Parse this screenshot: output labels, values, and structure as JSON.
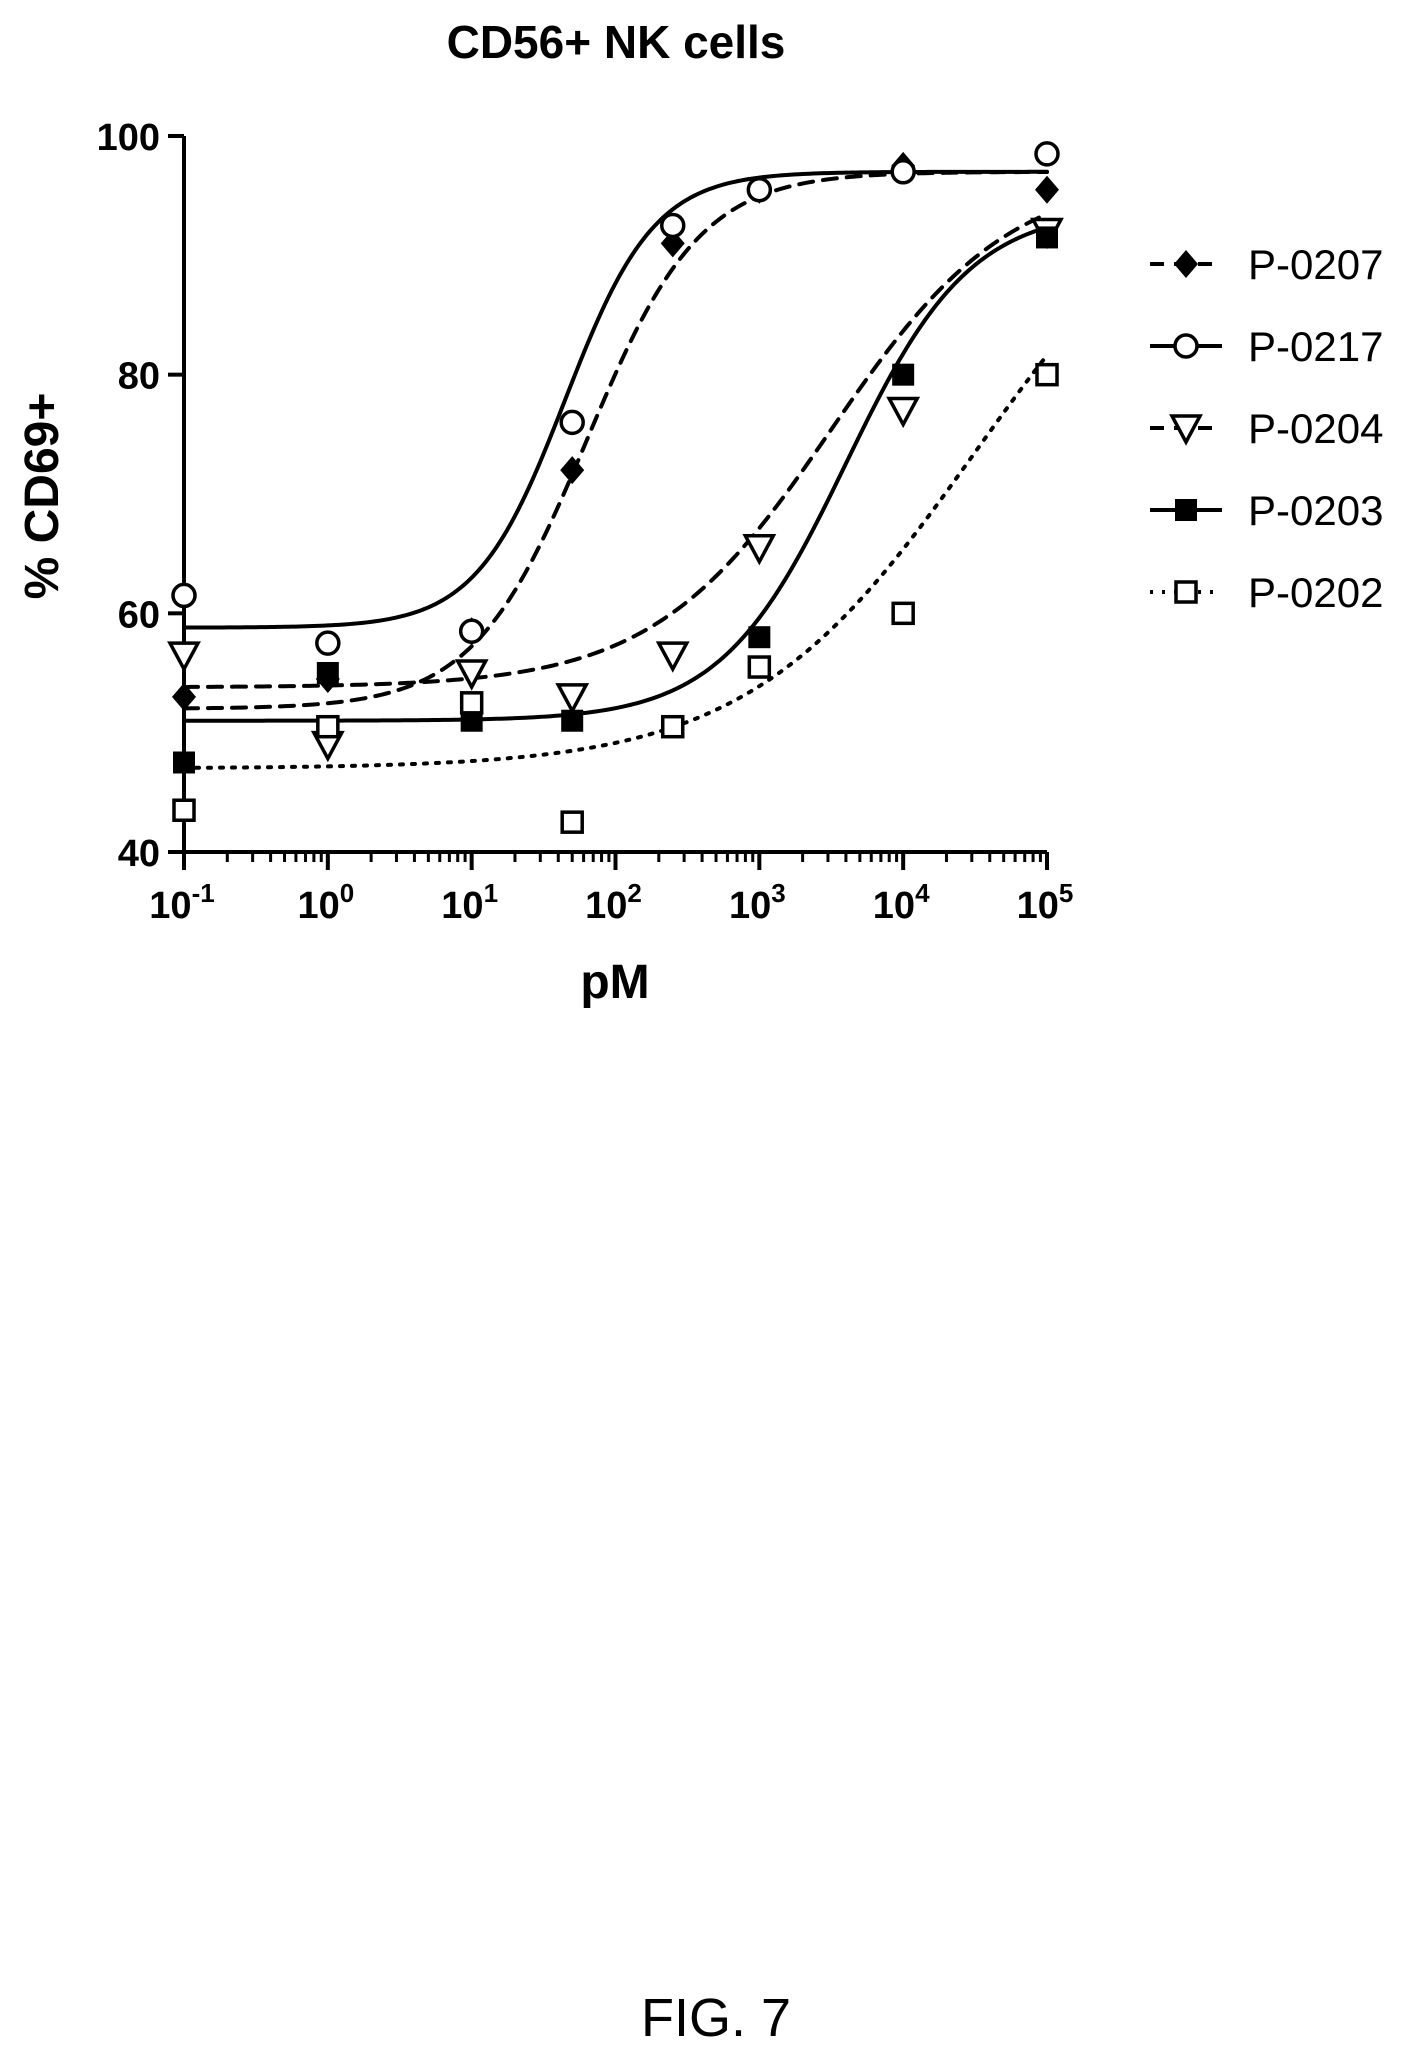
{
  "figure_label": "FIG. 7",
  "chart_data": {
    "type": "scatter",
    "title": "CD56+ NK cells",
    "xlabel": "pM",
    "ylabel": "% CD69+",
    "x_scale": "log",
    "xlim": [
      0.1,
      100000
    ],
    "ylim": [
      40,
      100
    ],
    "x_ticks": [
      {
        "value": 0.1,
        "base": "10",
        "exp": "-1"
      },
      {
        "value": 1,
        "base": "10",
        "exp": "0"
      },
      {
        "value": 10,
        "base": "10",
        "exp": "1"
      },
      {
        "value": 100,
        "base": "10",
        "exp": "2"
      },
      {
        "value": 1000,
        "base": "10",
        "exp": "3"
      },
      {
        "value": 10000,
        "base": "10",
        "exp": "4"
      },
      {
        "value": 100000,
        "base": "10",
        "exp": "5"
      }
    ],
    "y_ticks": [
      {
        "value": 40,
        "label": "40"
      },
      {
        "value": 60,
        "label": "60"
      },
      {
        "value": 80,
        "label": "80"
      },
      {
        "value": 100,
        "label": "100"
      }
    ],
    "grid": false,
    "legend_position": "right",
    "series": [
      {
        "name": "P-0207",
        "marker": "diamond-filled",
        "line": "dashed",
        "color": "#000000",
        "points": [
          [
            0.1,
            53
          ],
          [
            1,
            54.5
          ],
          [
            10,
            58.5
          ],
          [
            50,
            72
          ],
          [
            250,
            91
          ],
          [
            1000,
            95.5
          ],
          [
            10000,
            97.5
          ],
          [
            100000,
            95.5
          ]
        ],
        "fit": {
          "bottom": 52,
          "top": 97,
          "logEC50": 1.8,
          "hill": 1.1
        }
      },
      {
        "name": "P-0217",
        "marker": "circle-open",
        "line": "solid",
        "color": "#000000",
        "points": [
          [
            0.1,
            61.5
          ],
          [
            1,
            57.5
          ],
          [
            10,
            58.5
          ],
          [
            50,
            76
          ],
          [
            250,
            92.5
          ],
          [
            1000,
            95.5
          ],
          [
            10000,
            97
          ],
          [
            100000,
            98.5
          ]
        ],
        "fit": {
          "bottom": 58.8,
          "top": 97,
          "logEC50": 1.65,
          "hill": 1.4
        }
      },
      {
        "name": "P-0204",
        "marker": "triangle-down-open",
        "line": "dashed",
        "color": "#000000",
        "points": [
          [
            0.1,
            56.5
          ],
          [
            1,
            49
          ],
          [
            10,
            55
          ],
          [
            50,
            53
          ],
          [
            250,
            56.5
          ],
          [
            1000,
            65.5
          ],
          [
            10000,
            77
          ],
          [
            100000,
            92
          ]
        ],
        "fit": {
          "bottom": 53.8,
          "top": 97,
          "logEC50": 3.5,
          "hill": 0.7
        }
      },
      {
        "name": "P-0203",
        "marker": "square-filled",
        "line": "solid",
        "color": "#000000",
        "points": [
          [
            0.1,
            47.5
          ],
          [
            1,
            55
          ],
          [
            10,
            51
          ],
          [
            50,
            51
          ],
          [
            1000,
            58
          ],
          [
            10000,
            80
          ],
          [
            100000,
            91.5
          ]
        ],
        "fit": {
          "bottom": 51,
          "top": 94,
          "logEC50": 3.6,
          "hill": 1.0
        }
      },
      {
        "name": "P-0202",
        "marker": "square-open",
        "line": "dotted",
        "color": "#000000",
        "points": [
          [
            0.1,
            43.5
          ],
          [
            1,
            50.5
          ],
          [
            10,
            52.5
          ],
          [
            50,
            42.5
          ],
          [
            250,
            50.5
          ],
          [
            1000,
            55.5
          ],
          [
            10000,
            60
          ],
          [
            100000,
            80
          ]
        ],
        "fit": {
          "bottom": 47,
          "top": 100,
          "logEC50": 4.5,
          "hill": 0.55
        }
      }
    ]
  }
}
